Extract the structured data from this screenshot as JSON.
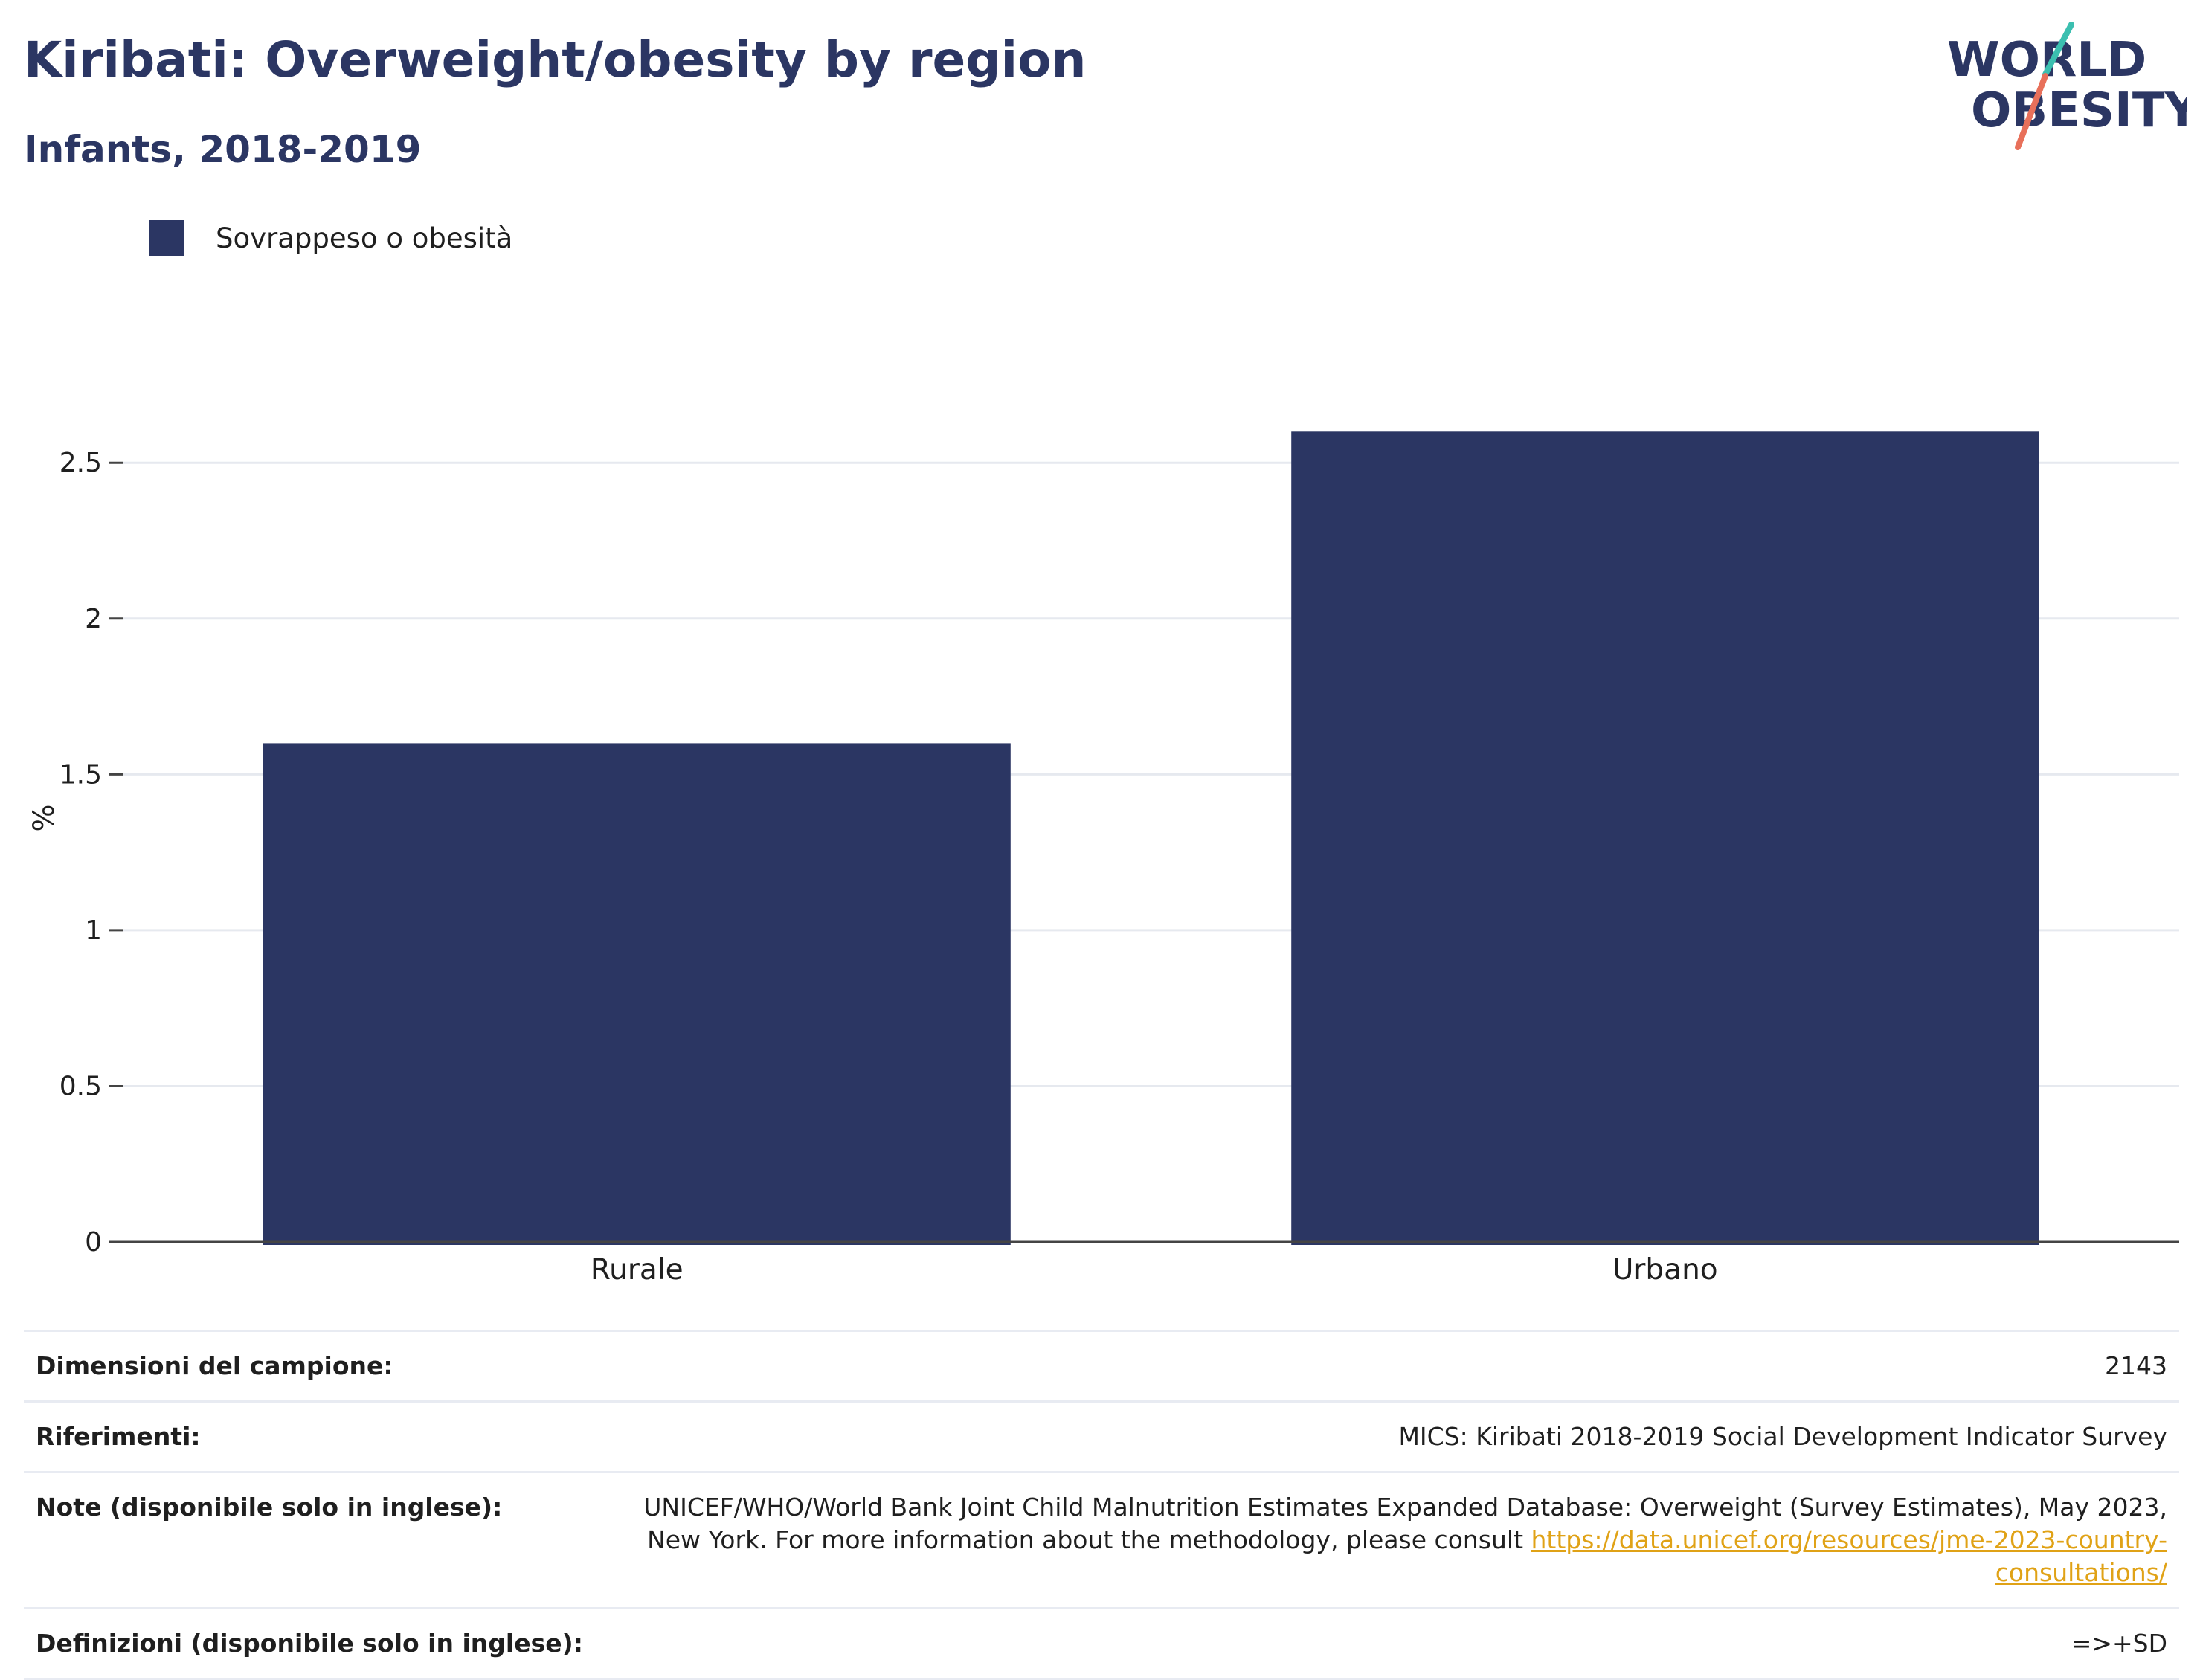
{
  "title": "Kiribati: Overweight/obesity by region",
  "subtitle": "Infants, 2018-2019",
  "logo": {
    "line1": "WORLD",
    "line2": "OBESITY"
  },
  "colors": {
    "bar": "#2b3663",
    "title": "#2b3663",
    "logo_teal": "#3bbfb0",
    "logo_coral": "#e8705a",
    "link": "#e0a216"
  },
  "legend": {
    "label": "Sovrappeso o obesità"
  },
  "chart_data": {
    "type": "bar",
    "categories": [
      "Rurale",
      "Urbano"
    ],
    "series": [
      {
        "name": "Sovrappeso o obesità",
        "values": [
          1.6,
          2.6
        ]
      }
    ],
    "ylabel": "%",
    "ylim": [
      0,
      2.72
    ],
    "yticks": [
      0,
      0.5,
      1,
      1.5,
      2,
      2.5
    ],
    "ytick_labels": [
      "0",
      "0.5",
      "1",
      "1.5",
      "2",
      "2.5"
    ],
    "grid": true
  },
  "table": {
    "sample_label": "Dimensioni del campione:",
    "sample_value": "2143",
    "refs_label": "Riferimenti:",
    "refs_value": "MICS: Kiribati 2018-2019 Social Development Indicator Survey",
    "notes_label": "Note (disponibile solo in inglese):",
    "notes_text": "UNICEF/WHO/World Bank Joint Child Malnutrition Estimates Expanded Database: Overweight (Survey Estimates), May 2023, New York. For more information about the methodology, please consult ",
    "notes_link": "https://data.unicef.org/resources/jme-2023-country-consultations/",
    "defs_label": "Definizioni (disponibile solo in inglese):",
    "defs_value": "=>+SD"
  }
}
